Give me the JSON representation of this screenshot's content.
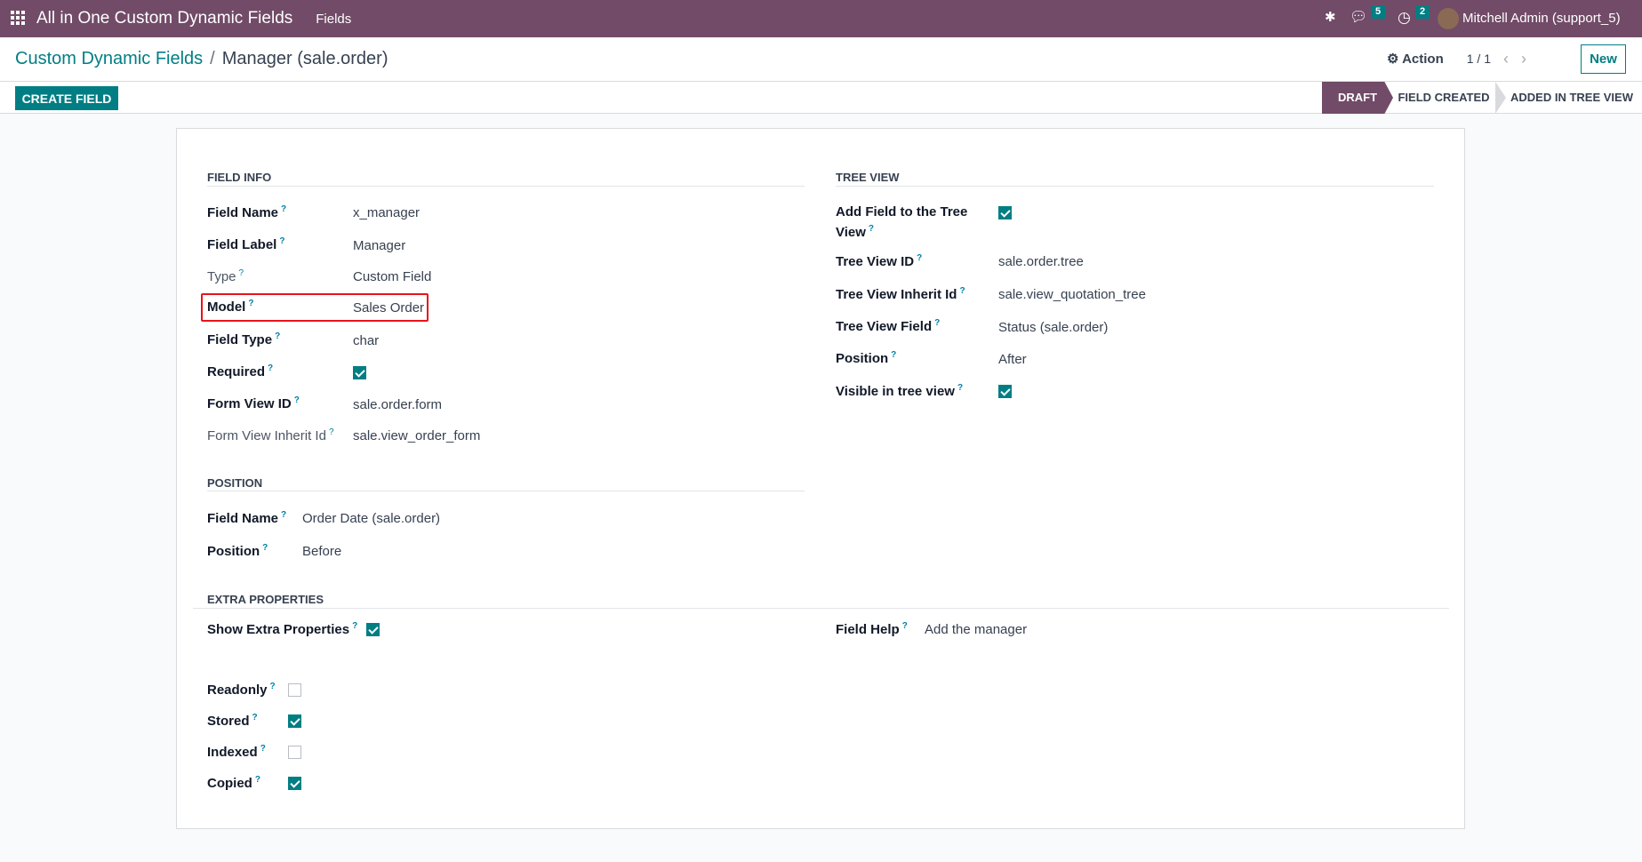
{
  "navbar": {
    "app_title": "All in One Custom Dynamic Fields",
    "menu_fields": "Fields",
    "messages_count": "5",
    "activities_count": "2",
    "user": "Mitchell Admin (support_5)",
    "color": "#714b67"
  },
  "breadcrumb": {
    "parent": "Custom Dynamic Fields",
    "separator": "/",
    "current": "Manager (sale.order)"
  },
  "control": {
    "action": "Action",
    "pager": "1 / 1",
    "new": "New",
    "create_field": "CREATE FIELD"
  },
  "statusbar": [
    "DRAFT",
    "FIELD CREATED",
    "ADDED IN TREE VIEW"
  ],
  "field_info": {
    "title": "FIELD INFO",
    "rows": [
      {
        "label": "Field Name",
        "value": "x_manager"
      },
      {
        "label": "Field Label",
        "value": "Manager"
      },
      {
        "label": "Type",
        "value": "Custom Field"
      },
      {
        "label": "Model",
        "value": "Sales Order"
      },
      {
        "label": "Field Type",
        "value": "char"
      },
      {
        "label": "Required",
        "checked": true
      },
      {
        "label": "Form View ID",
        "value": "sale.order.form"
      },
      {
        "label": "Form View Inherit Id",
        "value": "sale.view_order_form"
      }
    ]
  },
  "tree_view": {
    "title": "TREE VIEW",
    "rows": [
      {
        "label": "Add Field to the Tree",
        "label2": "View",
        "checked": true
      },
      {
        "label": "Tree View ID",
        "value": "sale.order.tree"
      },
      {
        "label": "Tree View Inherit Id",
        "value": "sale.view_quotation_tree"
      },
      {
        "label": "Tree View Field",
        "value": "Status (sale.order)"
      },
      {
        "label": "Position",
        "value": "After"
      },
      {
        "label": "Visible in tree view",
        "checked": true
      }
    ]
  },
  "position": {
    "title": "POSITION",
    "rows": [
      {
        "label": "Field Name",
        "value": "Order Date (sale.order)"
      },
      {
        "label": "Position",
        "value": "Before"
      }
    ]
  },
  "extra": {
    "title": "EXTRA PROPERTIES",
    "show_label": "Show Extra Properties",
    "show_checked": true,
    "help_label": "Field Help",
    "help_value": "Add the manager",
    "rows": [
      {
        "label": "Readonly",
        "checked": false
      },
      {
        "label": "Stored",
        "checked": true
      },
      {
        "label": "Indexed",
        "checked": false
      },
      {
        "label": "Copied",
        "checked": true
      }
    ]
  },
  "accent": "#017e84"
}
